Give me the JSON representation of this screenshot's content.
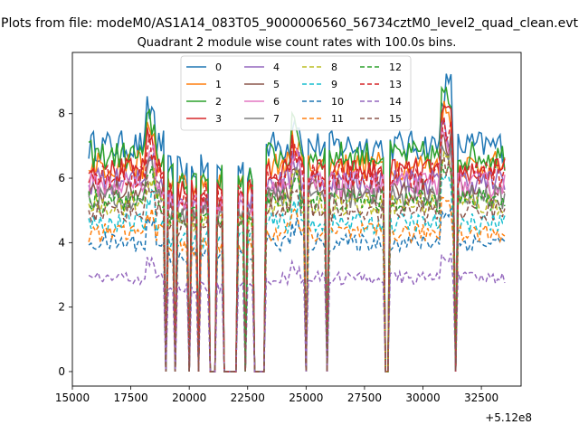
{
  "figure": {
    "suptitle": "Plots from file: modeM0/AS1A14_083T05_9000006560_56734cztM0_level2_quad_clean.evt",
    "title": "Quadrant 2 module wise count rates with 100.0s bins.",
    "offset_label": "+5.12e8"
  },
  "chart_data": {
    "type": "line",
    "title": "Quadrant 2 module wise count rates with 100.0s bins.",
    "xlabel": "",
    "ylabel": "",
    "x_offset": 512000000,
    "xlim": [
      15000,
      34200
    ],
    "ylim": [
      -0.45,
      9.9
    ],
    "xticks": [
      15000,
      17500,
      20000,
      22500,
      25000,
      27500,
      30000,
      32500
    ],
    "xtick_labels": [
      "15000",
      "17500",
      "20000",
      "22500",
      "25000",
      "27500",
      "30000",
      "32500"
    ],
    "yticks": [
      0,
      2,
      4,
      6,
      8
    ],
    "ytick_labels": [
      "0",
      "2",
      "4",
      "6",
      "8"
    ],
    "grid": false,
    "legend_placement": "top-center, 4 columns",
    "bin_seconds": 100,
    "x_range": [
      15700,
      33500
    ],
    "gti_segments": [
      [
        15700,
        18900
      ],
      [
        19100,
        19300
      ],
      [
        19450,
        19900
      ],
      [
        20050,
        20300
      ],
      [
        20450,
        20850
      ],
      [
        21200,
        21400
      ],
      [
        22100,
        22300
      ],
      [
        22500,
        22700
      ],
      [
        23300,
        24900
      ],
      [
        25100,
        25800
      ],
      [
        26000,
        28300
      ],
      [
        28600,
        31300
      ],
      [
        31450,
        31600
      ],
      [
        31700,
        33500
      ]
    ],
    "series": [
      {
        "name": "0",
        "color": "#1f77b4",
        "dash": "solid",
        "level": 7.0
      },
      {
        "name": "1",
        "color": "#ff7f0e",
        "dash": "solid",
        "level": 6.4
      },
      {
        "name": "2",
        "color": "#2ca02c",
        "dash": "solid",
        "level": 6.7
      },
      {
        "name": "3",
        "color": "#d62728",
        "dash": "solid",
        "level": 6.2
      },
      {
        "name": "4",
        "color": "#9467bd",
        "dash": "solid",
        "level": 5.9
      },
      {
        "name": "5",
        "color": "#8c564b",
        "dash": "solid",
        "level": 5.6
      },
      {
        "name": "6",
        "color": "#e377c2",
        "dash": "solid",
        "level": 5.8
      },
      {
        "name": "7",
        "color": "#7f7f7f",
        "dash": "solid",
        "level": 5.4
      },
      {
        "name": "8",
        "color": "#bcbd22",
        "dash": "dashed",
        "level": 5.2
      },
      {
        "name": "9",
        "color": "#17becf",
        "dash": "dashed",
        "level": 4.6
      },
      {
        "name": "10",
        "color": "#1f77b4",
        "dash": "dashed",
        "level": 4.0
      },
      {
        "name": "11",
        "color": "#ff7f0e",
        "dash": "dashed",
        "level": 4.3
      },
      {
        "name": "12",
        "color": "#2ca02c",
        "dash": "dashed",
        "level": 5.3
      },
      {
        "name": "13",
        "color": "#d62728",
        "dash": "dashed",
        "level": 6.1
      },
      {
        "name": "14",
        "color": "#9467bd",
        "dash": "dashed",
        "level": 2.9
      },
      {
        "name": "15",
        "color": "#8c564b",
        "dash": "dashed",
        "level": 5.0
      }
    ]
  }
}
